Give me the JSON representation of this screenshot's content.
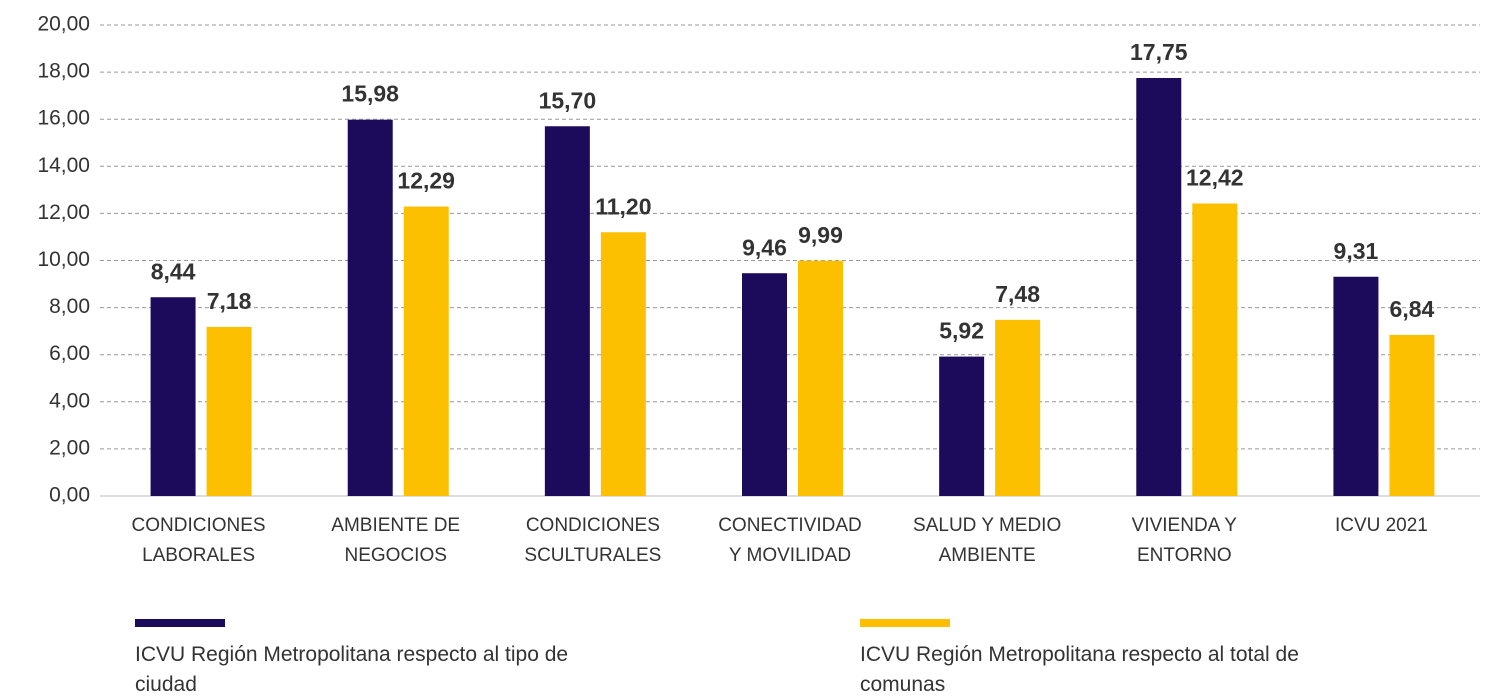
{
  "chart_data": {
    "type": "bar",
    "categories": [
      [
        "CONDICIONES",
        "LABORALES"
      ],
      [
        "AMBIENTE DE",
        "NEGOCIOS"
      ],
      [
        "CONDICIONES",
        "SCULTURALES"
      ],
      [
        "CONECTIVIDAD",
        "Y MOVILIDAD"
      ],
      [
        "SALUD Y MEDIO",
        "AMBIENTE"
      ],
      [
        "VIVIENDA Y",
        "ENTORNO"
      ],
      [
        "ICVU 2021"
      ]
    ],
    "series": [
      {
        "name": "ICVU Región Metropolitana respecto al tipo de ciudad",
        "color": "#1c0a5a",
        "values": [
          8.44,
          15.98,
          15.7,
          9.46,
          5.92,
          17.75,
          9.31
        ],
        "value_labels": [
          "8,44",
          "15,98",
          "15,70",
          "9,46",
          "5,92",
          "17,75",
          "9,31"
        ]
      },
      {
        "name": "ICVU Región Metropolitana respecto al total de comunas",
        "color": "#fcc000",
        "values": [
          7.18,
          12.29,
          11.2,
          9.99,
          7.48,
          12.42,
          6.84
        ],
        "value_labels": [
          "7,18",
          "12,29",
          "11,20",
          "9,99",
          "7,48",
          "12,42",
          "6,84"
        ]
      }
    ],
    "ylim": [
      0,
      20
    ],
    "yticks": [
      {
        "value": 0,
        "label": "0,00"
      },
      {
        "value": 2,
        "label": "2,00"
      },
      {
        "value": 4,
        "label": "4,00"
      },
      {
        "value": 6,
        "label": "6,00"
      },
      {
        "value": 8,
        "label": "8,00"
      },
      {
        "value": 10,
        "label": "10,00"
      },
      {
        "value": 12,
        "label": "12,00"
      },
      {
        "value": 14,
        "label": "14,00"
      },
      {
        "value": 16,
        "label": "16,00"
      },
      {
        "value": 18,
        "label": "18,00"
      },
      {
        "value": 20,
        "label": "20,00"
      }
    ],
    "grid": true
  }
}
